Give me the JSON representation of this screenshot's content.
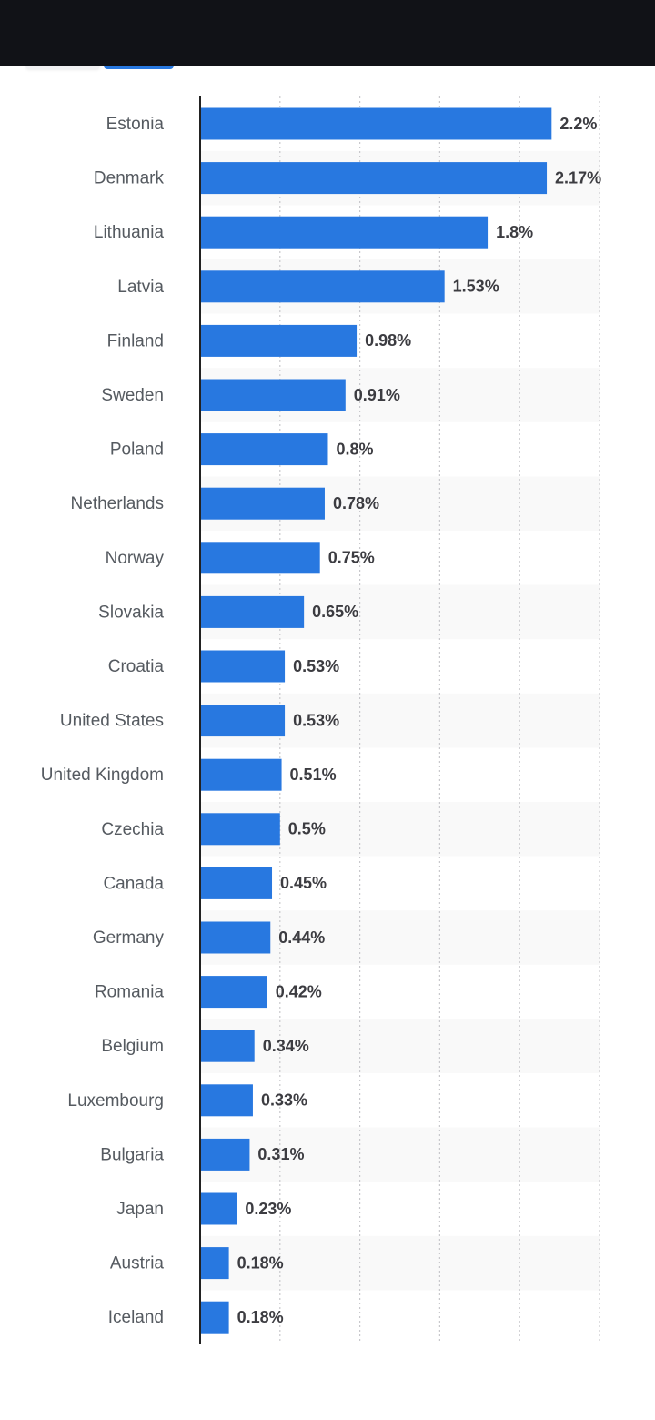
{
  "chart_data": {
    "type": "bar",
    "orientation": "horizontal",
    "categories": [
      "Estonia",
      "Denmark",
      "Lithuania",
      "Latvia",
      "Finland",
      "Sweden",
      "Poland",
      "Netherlands",
      "Norway",
      "Slovakia",
      "Croatia",
      "United States",
      "United Kingdom",
      "Czechia",
      "Canada",
      "Germany",
      "Romania",
      "Belgium",
      "Luxembourg",
      "Bulgaria",
      "Japan",
      "Austria",
      "Iceland"
    ],
    "values": [
      2.2,
      2.17,
      1.8,
      1.53,
      0.98,
      0.91,
      0.8,
      0.78,
      0.75,
      0.65,
      0.53,
      0.53,
      0.51,
      0.5,
      0.45,
      0.44,
      0.42,
      0.34,
      0.33,
      0.31,
      0.23,
      0.18,
      0.18
    ],
    "value_labels": [
      "2.2%",
      "2.17%",
      "1.8%",
      "1.53%",
      "0.98%",
      "0.91%",
      "0.8%",
      "0.78%",
      "0.75%",
      "0.65%",
      "0.53%",
      "0.53%",
      "0.51%",
      "0.5%",
      "0.45%",
      "0.44%",
      "0.42%",
      "0.34%",
      "0.33%",
      "0.31%",
      "0.23%",
      "0.18%",
      "0.18%"
    ],
    "xlim": [
      0,
      2.5
    ],
    "x_gridlines": [
      0.5,
      1.0,
      1.5,
      2.0,
      2.5
    ],
    "grid": true,
    "alternating_row_bands": true,
    "title": "",
    "xlabel": "",
    "ylabel": "",
    "colors": {
      "bar": "#2878e0",
      "band": "#f9f9f9",
      "axis": "#222222",
      "grid": "#c8c8cc"
    }
  },
  "header": {
    "background": "#111217",
    "tabs": [
      {
        "name": "tab-1",
        "active": false
      },
      {
        "name": "tab-2",
        "active": true,
        "color": "#2878e0"
      }
    ]
  }
}
